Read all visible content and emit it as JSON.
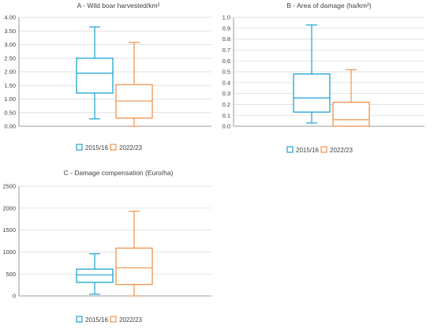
{
  "colors": {
    "s1": "#1aa3d3",
    "s2": "#f0934e"
  },
  "chart_data": [
    {
      "type": "box",
      "title": "A - Wild boar harvested/km²",
      "ylim": [
        0,
        4
      ],
      "yticks": [
        "0.00",
        "0.50",
        "1.00",
        "1.50",
        "2.00",
        "2.50",
        "3.00",
        "3.50",
        "4.00"
      ],
      "series": [
        {
          "name": "2015/16",
          "min": 0.27,
          "q1": 1.22,
          "median": 1.95,
          "q3": 2.5,
          "max": 3.65
        },
        {
          "name": "2022/23",
          "min": 0.0,
          "q1": 0.3,
          "median": 0.93,
          "q3": 1.53,
          "max": 3.08
        }
      ],
      "legend": "bottom"
    },
    {
      "type": "box",
      "title": "B - Area of damage (ha/km²)",
      "ylim": [
        0,
        1
      ],
      "yticks": [
        "0.0",
        "0.1",
        "0.2",
        "0.3",
        "0.4",
        "0.5",
        "0.6",
        "0.7",
        "0.8",
        "0.9",
        "1.0"
      ],
      "series": [
        {
          "name": "2015/16",
          "min": 0.03,
          "q1": 0.13,
          "median": 0.26,
          "q3": 0.48,
          "max": 0.93
        },
        {
          "name": "2022/23",
          "min": 0.0,
          "q1": 0.0,
          "median": 0.06,
          "q3": 0.22,
          "max": 0.52
        }
      ],
      "legend": "bottom"
    },
    {
      "type": "box",
      "title": "C - Damage compensation (Euro/ha)",
      "ylim": [
        0,
        2500
      ],
      "yticks": [
        "0",
        "500",
        "1000",
        "1500",
        "2000",
        "2500"
      ],
      "series": [
        {
          "name": "2015/16",
          "min": 40,
          "q1": 310,
          "median": 480,
          "q3": 610,
          "max": 960
        },
        {
          "name": "2022/23",
          "min": 0,
          "q1": 260,
          "median": 640,
          "q3": 1090,
          "max": 1930
        }
      ],
      "legend": "bottom"
    }
  ]
}
